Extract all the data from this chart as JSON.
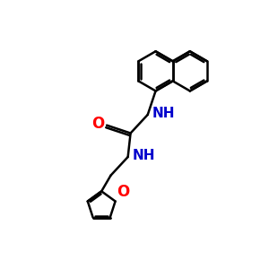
{
  "background_color": "#ffffff",
  "bond_color": "#000000",
  "nitrogen_color": "#0000cc",
  "oxygen_color": "#ff0000",
  "line_width": 1.8,
  "font_size_atoms": 11,
  "figsize": [
    3.0,
    3.0
  ],
  "dpi": 100,
  "xlim": [
    0,
    10
  ],
  "ylim": [
    0,
    10
  ]
}
